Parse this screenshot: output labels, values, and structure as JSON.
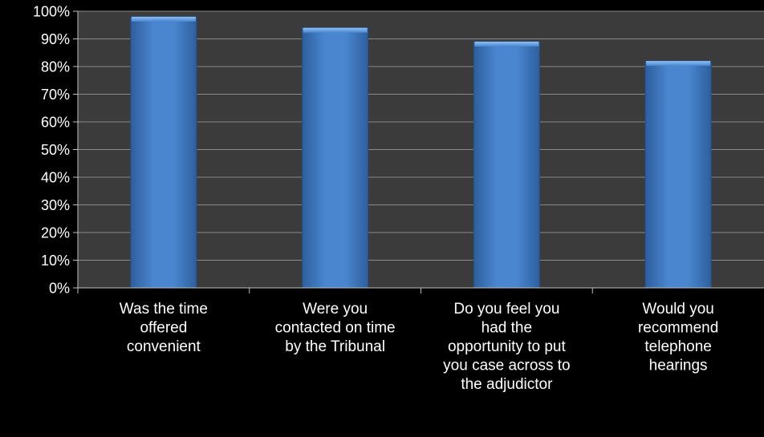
{
  "chart_data": {
    "type": "bar",
    "title": "",
    "xlabel": "",
    "ylabel": "",
    "categories": [
      [
        "Was the time",
        "offered",
        "convenient"
      ],
      [
        "Were you",
        "contacted on time",
        "by the Tribunal"
      ],
      [
        "Do you feel you",
        "had the",
        "opportunity to put",
        "you case across to",
        "the adjudictor"
      ],
      [
        "Would you",
        "recommend",
        "telephone",
        "hearings"
      ]
    ],
    "values": [
      98,
      94,
      89,
      82
    ],
    "ylim": [
      0,
      100
    ],
    "yticks": [
      "0%",
      "10%",
      "20%",
      "30%",
      "40%",
      "50%",
      "60%",
      "70%",
      "80%",
      "90%",
      "100%"
    ],
    "grid": true,
    "legend": "none"
  },
  "colors": {
    "background": "#000000",
    "plot_area": "#3b3b3b",
    "gridline": "#8a8a8a",
    "axis": "#bfbfbf",
    "bar_dark": "#2d5f9e",
    "bar_mid": "#4a86cf",
    "bar_light": "#6aa3e6",
    "text": "#ffffff"
  }
}
